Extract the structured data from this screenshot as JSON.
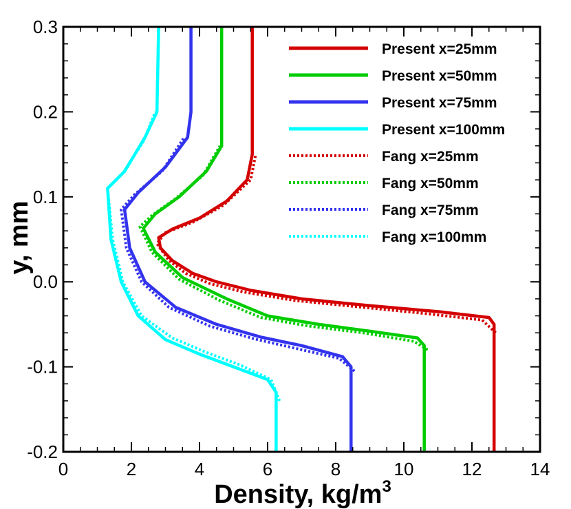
{
  "chart_data": {
    "type": "line",
    "title": "",
    "xlabel": "Density, kg/m",
    "xlabel_superscript": "3",
    "ylabel": "y, mm",
    "xlim": [
      0,
      14
    ],
    "ylim": [
      -0.2,
      0.3
    ],
    "x_ticks": [
      0,
      2,
      4,
      6,
      8,
      10,
      12,
      14
    ],
    "x_tick_labels": [
      "0",
      "2",
      "4",
      "6",
      "8",
      "10",
      "12",
      "14"
    ],
    "y_ticks": [
      -0.2,
      -0.1,
      0.0,
      0.1,
      0.2,
      0.3
    ],
    "y_tick_labels": [
      "-0.2",
      "-0.1",
      "0.0",
      "0.1",
      "0.2",
      "0.3"
    ],
    "grid": false,
    "legend_position": "top-right",
    "series": [
      {
        "name": "Present x=25mm",
        "color": "#d40000",
        "style": "solid",
        "points": [
          [
            12.65,
            -0.2
          ],
          [
            12.65,
            -0.05
          ],
          [
            12.5,
            -0.042
          ],
          [
            11,
            -0.035
          ],
          [
            9,
            -0.028
          ],
          [
            7,
            -0.02
          ],
          [
            5.5,
            -0.01
          ],
          [
            4.5,
            0.0
          ],
          [
            3.8,
            0.01
          ],
          [
            3.2,
            0.025
          ],
          [
            2.85,
            0.04
          ],
          [
            2.8,
            0.052
          ],
          [
            3.2,
            0.062
          ],
          [
            4.0,
            0.075
          ],
          [
            4.8,
            0.095
          ],
          [
            5.4,
            0.12
          ],
          [
            5.55,
            0.15
          ],
          [
            5.55,
            0.2
          ],
          [
            5.55,
            0.3
          ]
        ]
      },
      {
        "name": "Present x=50mm",
        "color": "#00cc00",
        "style": "solid",
        "points": [
          [
            10.6,
            -0.2
          ],
          [
            10.6,
            -0.075
          ],
          [
            10.4,
            -0.066
          ],
          [
            9.0,
            -0.058
          ],
          [
            7.5,
            -0.05
          ],
          [
            6,
            -0.04
          ],
          [
            4.8,
            -0.02
          ],
          [
            3.5,
            0.005
          ],
          [
            2.7,
            0.035
          ],
          [
            2.35,
            0.063
          ],
          [
            2.7,
            0.08
          ],
          [
            3.4,
            0.1
          ],
          [
            4.2,
            0.13
          ],
          [
            4.65,
            0.16
          ],
          [
            4.65,
            0.2
          ],
          [
            4.65,
            0.3
          ]
        ]
      },
      {
        "name": "Present x=75mm",
        "color": "#3333ee",
        "style": "solid",
        "points": [
          [
            8.45,
            -0.2
          ],
          [
            8.45,
            -0.1
          ],
          [
            8.2,
            -0.088
          ],
          [
            7.0,
            -0.075
          ],
          [
            5.8,
            -0.065
          ],
          [
            4.5,
            -0.05
          ],
          [
            3.3,
            -0.03
          ],
          [
            2.4,
            0.0
          ],
          [
            1.95,
            0.04
          ],
          [
            1.8,
            0.085
          ],
          [
            2.2,
            0.105
          ],
          [
            3.0,
            0.135
          ],
          [
            3.65,
            0.17
          ],
          [
            3.75,
            0.2
          ],
          [
            3.75,
            0.3
          ]
        ]
      },
      {
        "name": "Present x=100mm",
        "color": "#00ffff",
        "style": "solid",
        "points": [
          [
            6.25,
            -0.2
          ],
          [
            6.25,
            -0.13
          ],
          [
            6.0,
            -0.115
          ],
          [
            5.0,
            -0.1
          ],
          [
            4.0,
            -0.085
          ],
          [
            3.0,
            -0.068
          ],
          [
            2.2,
            -0.04
          ],
          [
            1.7,
            0.0
          ],
          [
            1.4,
            0.05
          ],
          [
            1.3,
            0.11
          ],
          [
            1.8,
            0.13
          ],
          [
            2.4,
            0.17
          ],
          [
            2.75,
            0.2
          ],
          [
            2.8,
            0.3
          ]
        ]
      },
      {
        "name": "Fang x=25mm",
        "color": "#d40000",
        "style": "dotted",
        "points": [
          [
            12.7,
            -0.06
          ],
          [
            12.3,
            -0.045
          ],
          [
            10.8,
            -0.038
          ],
          [
            8.8,
            -0.03
          ],
          [
            6.8,
            -0.022
          ],
          [
            5.3,
            -0.012
          ],
          [
            4.3,
            -0.002
          ],
          [
            3.6,
            0.01
          ],
          [
            3.1,
            0.025
          ],
          [
            2.75,
            0.045
          ],
          [
            3.0,
            0.058
          ],
          [
            3.8,
            0.07
          ],
          [
            4.7,
            0.09
          ],
          [
            5.5,
            0.12
          ],
          [
            5.65,
            0.15
          ]
        ]
      },
      {
        "name": "Fang x=50mm",
        "color": "#00cc00",
        "style": "dotted",
        "points": [
          [
            10.7,
            -0.08
          ],
          [
            10.3,
            -0.07
          ],
          [
            8.8,
            -0.06
          ],
          [
            7.2,
            -0.052
          ],
          [
            5.8,
            -0.042
          ],
          [
            4.6,
            -0.022
          ],
          [
            3.4,
            0.003
          ],
          [
            2.6,
            0.035
          ],
          [
            2.25,
            0.065
          ],
          [
            2.6,
            0.078
          ],
          [
            3.3,
            0.098
          ],
          [
            4.1,
            0.125
          ],
          [
            4.6,
            0.16
          ]
        ]
      },
      {
        "name": "Fang x=75mm",
        "color": "#3333ee",
        "style": "dotted",
        "points": [
          [
            8.55,
            -0.105
          ],
          [
            8.1,
            -0.09
          ],
          [
            6.8,
            -0.078
          ],
          [
            5.6,
            -0.067
          ],
          [
            4.3,
            -0.052
          ],
          [
            3.1,
            -0.03
          ],
          [
            2.3,
            0.0
          ],
          [
            1.85,
            0.04
          ],
          [
            1.7,
            0.085
          ],
          [
            2.1,
            0.103
          ],
          [
            2.9,
            0.13
          ],
          [
            3.55,
            0.17
          ]
        ]
      },
      {
        "name": "Fang x=100mm",
        "color": "#00ffff",
        "style": "dotted",
        "points": [
          [
            6.35,
            -0.14
          ],
          [
            6.1,
            -0.115
          ],
          [
            5.2,
            -0.098
          ],
          [
            4.2,
            -0.083
          ],
          [
            3.2,
            -0.066
          ],
          [
            2.3,
            -0.04
          ],
          [
            1.75,
            0.0
          ],
          [
            1.45,
            0.05
          ],
          [
            1.3,
            0.11
          ],
          [
            1.75,
            0.128
          ],
          [
            2.35,
            0.165
          ],
          [
            2.7,
            0.2
          ]
        ]
      }
    ]
  }
}
